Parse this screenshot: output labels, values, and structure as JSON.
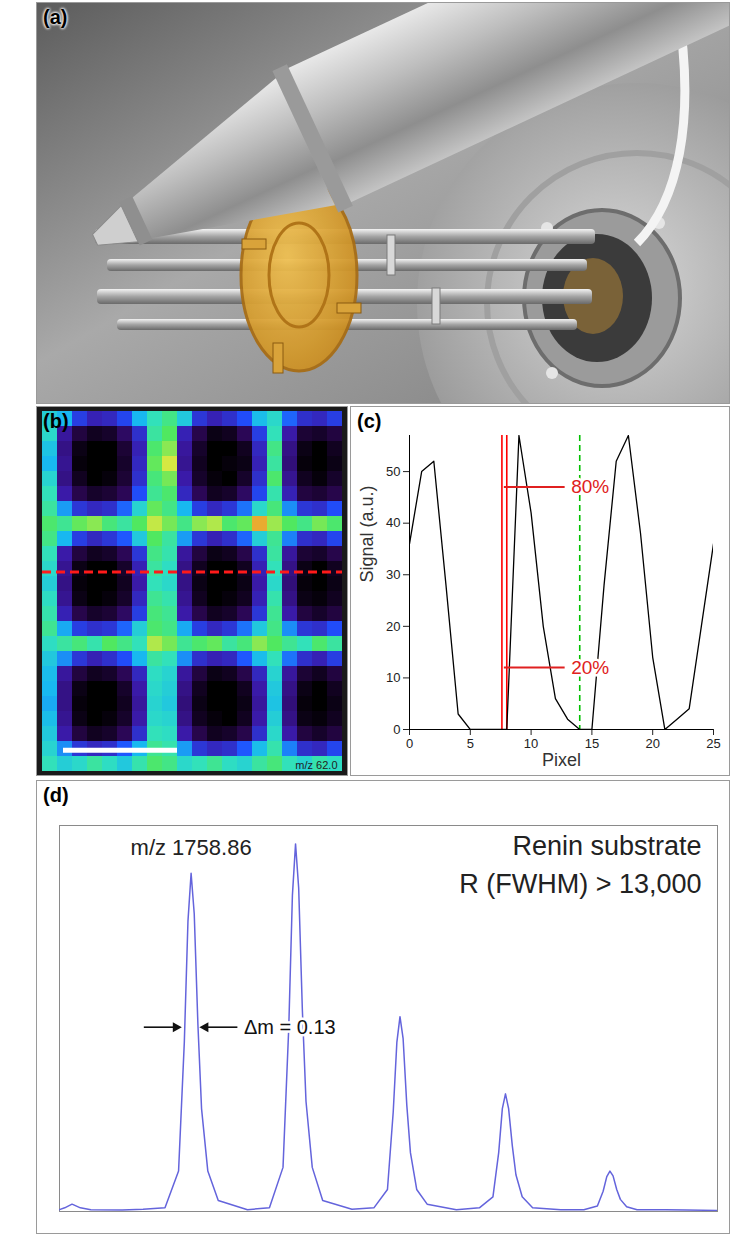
{
  "photo": {
    "label": "(a)"
  },
  "chart_data": [
    {
      "type": "heatmap",
      "label": "(b)",
      "annotation": "m/z 62.0",
      "tick_labels": false,
      "color_range": [
        0,
        60
      ],
      "profile_row": 10.7,
      "cells": [
        [
          34,
          30,
          20,
          16,
          17,
          21,
          30,
          38,
          42,
          33,
          19,
          16,
          18,
          22,
          31,
          36,
          24,
          18,
          17,
          20
        ],
        [
          36,
          14,
          6,
          3,
          4,
          9,
          18,
          40,
          45,
          16,
          7,
          2,
          3,
          8,
          20,
          38,
          15,
          5,
          4,
          6
        ],
        [
          32,
          12,
          2,
          0,
          0,
          5,
          16,
          44,
          48,
          14,
          4,
          0,
          0,
          3,
          17,
          42,
          12,
          2,
          0,
          3
        ],
        [
          30,
          13,
          1,
          0,
          0,
          4,
          17,
          46,
          52,
          13,
          3,
          0,
          1,
          2,
          16,
          40,
          11,
          1,
          0,
          2
        ],
        [
          35,
          12,
          3,
          0,
          1,
          5,
          18,
          43,
          47,
          15,
          4,
          1,
          0,
          4,
          18,
          44,
          13,
          3,
          1,
          4
        ],
        [
          38,
          15,
          7,
          4,
          5,
          8,
          22,
          41,
          44,
          17,
          8,
          3,
          4,
          9,
          21,
          39,
          16,
          6,
          5,
          7
        ],
        [
          40,
          28,
          19,
          17,
          18,
          24,
          35,
          46,
          42,
          30,
          20,
          17,
          19,
          25,
          36,
          43,
          27,
          19,
          18,
          22
        ],
        [
          44,
          41,
          46,
          48,
          43,
          40,
          45,
          51,
          47,
          42,
          48,
          50,
          44,
          46,
          55,
          49,
          45,
          42,
          47,
          44
        ],
        [
          42,
          30,
          20,
          17,
          19,
          23,
          33,
          45,
          40,
          28,
          19,
          16,
          18,
          24,
          34,
          41,
          26,
          18,
          17,
          21
        ],
        [
          38,
          15,
          6,
          3,
          4,
          8,
          19,
          42,
          39,
          14,
          6,
          2,
          3,
          7,
          18,
          40,
          14,
          5,
          4,
          7
        ],
        [
          36,
          13,
          2,
          0,
          0,
          4,
          16,
          40,
          37,
          12,
          3,
          0,
          0,
          3,
          16,
          38,
          12,
          2,
          0,
          3
        ],
        [
          34,
          12,
          1,
          0,
          0,
          3,
          15,
          38,
          36,
          12,
          2,
          0,
          0,
          2,
          15,
          36,
          11,
          1,
          0,
          2
        ],
        [
          37,
          13,
          2,
          0,
          1,
          4,
          17,
          41,
          39,
          13,
          3,
          0,
          1,
          3,
          16,
          39,
          12,
          2,
          1,
          3
        ],
        [
          39,
          16,
          7,
          4,
          5,
          9,
          20,
          43,
          41,
          15,
          7,
          3,
          4,
          8,
          19,
          41,
          15,
          6,
          4,
          6
        ],
        [
          41,
          29,
          20,
          18,
          19,
          24,
          34,
          44,
          42,
          29,
          20,
          17,
          19,
          25,
          33,
          42,
          27,
          19,
          18,
          22
        ],
        [
          37,
          40,
          43,
          39,
          45,
          42,
          38,
          50,
          47,
          41,
          44,
          46,
          40,
          43,
          48,
          45,
          41,
          38,
          44,
          40
        ],
        [
          33,
          27,
          19,
          16,
          18,
          22,
          30,
          40,
          38,
          27,
          18,
          16,
          17,
          23,
          31,
          38,
          25,
          18,
          16,
          20
        ],
        [
          31,
          14,
          6,
          3,
          4,
          8,
          17,
          37,
          35,
          14,
          6,
          2,
          3,
          7,
          17,
          35,
          14,
          5,
          3,
          6
        ],
        [
          30,
          12,
          2,
          0,
          0,
          4,
          15,
          36,
          34,
          12,
          3,
          0,
          0,
          3,
          15,
          33,
          12,
          2,
          0,
          3
        ],
        [
          29,
          12,
          1,
          0,
          0,
          3,
          14,
          35,
          33,
          11,
          2,
          0,
          0,
          2,
          14,
          32,
          11,
          1,
          0,
          2
        ],
        [
          31,
          13,
          2,
          0,
          1,
          4,
          15,
          36,
          35,
          12,
          3,
          1,
          0,
          3,
          15,
          34,
          12,
          2,
          1,
          3
        ],
        [
          33,
          15,
          6,
          3,
          4,
          8,
          18,
          38,
          37,
          15,
          7,
          3,
          4,
          7,
          18,
          36,
          15,
          6,
          4,
          6
        ],
        [
          35,
          27,
          19,
          17,
          18,
          23,
          30,
          41,
          39,
          28,
          19,
          17,
          18,
          23,
          31,
          39,
          26,
          18,
          17,
          21
        ],
        [
          38,
          34,
          36,
          40,
          37,
          33,
          39,
          44,
          42,
          36,
          38,
          41,
          37,
          35,
          40,
          43,
          38,
          35,
          39,
          37
        ]
      ]
    },
    {
      "type": "line",
      "label": "(c)",
      "x_label": "Pixel",
      "y_label": "Signal (a.u.)",
      "x": [
        0,
        1,
        2,
        3,
        4,
        5,
        6,
        7,
        8,
        9,
        10,
        11,
        12,
        13,
        14,
        15,
        16,
        17,
        18,
        19,
        20,
        21,
        22,
        23,
        24,
        25
      ],
      "values": [
        36,
        50,
        52,
        28,
        3,
        0,
        0,
        0,
        0,
        57,
        42,
        20,
        6,
        2,
        0,
        0,
        28,
        52,
        57,
        38,
        14,
        0,
        2,
        4,
        20,
        36
      ],
      "color": "#000000",
      "xlim": [
        0,
        25
      ],
      "ylim": [
        0,
        57
      ],
      "xticks": [
        0,
        5,
        10,
        15,
        20,
        25
      ],
      "yticks": [
        0,
        10,
        20,
        30,
        40,
        50
      ],
      "vlines": [
        {
          "x": 7.6,
          "color": "#ff0000"
        },
        {
          "x": 8.0,
          "color": "#ff0000"
        },
        {
          "x": 14,
          "color": "#00c000",
          "line_style": "dashed"
        }
      ],
      "annotations": [
        {
          "text": "80%",
          "x1": 7.8,
          "x2": 12.8,
          "y": 47,
          "color": "#e02020"
        },
        {
          "text": "20%",
          "x1": 7.8,
          "x2": 12.8,
          "y": 12,
          "color": "#e02020"
        }
      ]
    },
    {
      "type": "line",
      "label": "(d)",
      "title": "Renin substrate",
      "subtitle": "R (FWHM) > 13,000",
      "tick_labels": false,
      "color": "#6464dc",
      "x": [
        1757.6,
        1757.65,
        1757.72,
        1757.8,
        1757.9,
        1758.2,
        1758.4,
        1758.61,
        1758.74,
        1758.795,
        1758.83,
        1758.86,
        1758.89,
        1758.925,
        1758.96,
        1759.02,
        1759.12,
        1759.4,
        1759.61,
        1759.74,
        1759.795,
        1759.83,
        1759.86,
        1759.89,
        1759.925,
        1759.96,
        1760.02,
        1760.12,
        1760.4,
        1760.61,
        1760.74,
        1760.795,
        1760.83,
        1760.86,
        1760.89,
        1760.925,
        1760.96,
        1761.02,
        1761.12,
        1761.4,
        1761.62,
        1761.75,
        1761.805,
        1761.84,
        1761.87,
        1761.9,
        1761.935,
        1761.97,
        1762.03,
        1762.13,
        1762.4,
        1762.62,
        1762.75,
        1762.805,
        1762.84,
        1762.87,
        1762.9,
        1762.935,
        1762.97,
        1763.03,
        1763.13,
        1763.4,
        1763.6,
        1763.9
      ],
      "values": [
        0.5,
        1,
        2,
        1,
        0.5,
        0.4,
        0.6,
        1,
        11,
        46,
        79,
        92,
        81,
        51,
        28,
        11,
        3,
        0.5,
        1,
        12,
        50,
        86,
        100,
        88,
        55,
        30,
        12,
        3,
        0.6,
        1,
        6,
        27,
        46,
        53,
        47,
        29,
        16,
        6,
        2,
        0.5,
        1,
        4,
        16,
        28,
        32,
        28,
        18,
        10,
        4,
        1,
        0.5,
        0.5,
        1.5,
        5.5,
        9.5,
        11,
        9.7,
        6,
        3.3,
        1.3,
        0.5,
        0.5,
        0.4,
        0.3
      ],
      "xlim": [
        1757.6,
        1763.9
      ],
      "ylim": [
        0,
        105
      ],
      "annotations": [
        {
          "text": "m/z 1758.86",
          "x": 1758.86,
          "y": 97
        }
      ],
      "delta_m": {
        "text": "Δm = 0.13",
        "x1": 1758.795,
        "x2": 1758.925,
        "y": 50
      }
    }
  ]
}
